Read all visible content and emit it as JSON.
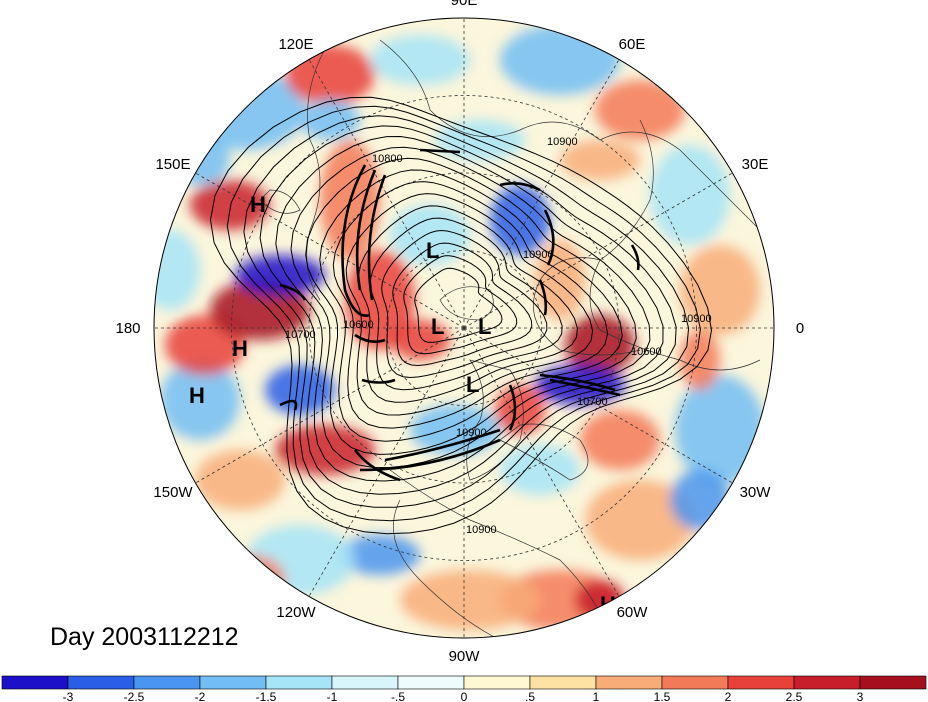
{
  "map": {
    "title": "Day 2003112212",
    "projection": "polar-stereographic-north",
    "longitude_labels": [
      {
        "text": "90E",
        "lon": 90
      },
      {
        "text": "60E",
        "lon": 60
      },
      {
        "text": "30E",
        "lon": 30
      },
      {
        "text": "0",
        "lon": 0
      },
      {
        "text": "30W",
        "lon": -30
      },
      {
        "text": "60W",
        "lon": -60
      },
      {
        "text": "90W",
        "lon": -90
      },
      {
        "text": "120W",
        "lon": -120
      },
      {
        "text": "150W",
        "lon": -150
      },
      {
        "text": "180",
        "lon": 180
      },
      {
        "text": "150E",
        "lon": 150
      },
      {
        "text": "120E",
        "lon": 120
      }
    ],
    "pressure_centers": [
      {
        "text": "H"
      },
      {
        "text": "H"
      },
      {
        "text": "H"
      },
      {
        "text": "H"
      },
      {
        "text": "L"
      },
      {
        "text": "L"
      },
      {
        "text": "L"
      },
      {
        "text": "L"
      }
    ],
    "contour_labels": [
      "10800",
      "10900",
      "10900",
      "10700",
      "10600",
      "10900",
      "10600",
      "10700",
      "10900",
      "10900"
    ],
    "colors": {
      "negative": [
        "#1c10c8",
        "#2a5ee6",
        "#4a95ef",
        "#72bdf3",
        "#a6e4f7",
        "#d7f5fb"
      ],
      "positive": [
        "#fff8d2",
        "#fde2a4",
        "#f8ad78",
        "#f37a58",
        "#e8413a",
        "#c81d2a",
        "#a50f1e"
      ]
    }
  },
  "colorbar": {
    "labels": [
      "-3",
      "-2.5",
      "-2",
      "-1.5",
      "-1",
      "-.5",
      "0",
      ".5",
      "1",
      "1.5",
      "2",
      "2.5",
      "3"
    ],
    "colors": [
      "#1c10c8",
      "#2a5ee6",
      "#4a95ef",
      "#72bdf3",
      "#a6e4f7",
      "#d7f5fb",
      "#eefcfd",
      "#fff8d2",
      "#fde2a4",
      "#f8ad78",
      "#f37a58",
      "#e8413a",
      "#c81d2a",
      "#a50f1e"
    ]
  }
}
